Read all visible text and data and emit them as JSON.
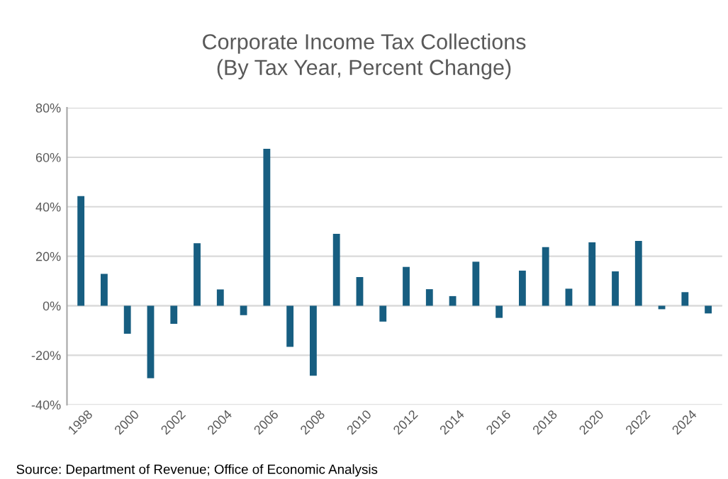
{
  "chart_data": {
    "type": "bar",
    "title": "Corporate Income Tax Collections\n(By Tax Year, Percent Change)",
    "categories": [
      "1998",
      null,
      "2000",
      null,
      "2002",
      null,
      "2004",
      null,
      "2006",
      null,
      "2008",
      null,
      "2010",
      null,
      "2012",
      null,
      "2014",
      null,
      "2016",
      null,
      "2018",
      null,
      "2020",
      null,
      "2022",
      null,
      "2024",
      null
    ],
    "values": [
      44.3,
      12.9,
      -11.3,
      -29.3,
      -7.3,
      25.3,
      6.6,
      -3.8,
      63.4,
      -16.6,
      -28.3,
      29.1,
      11.6,
      -6.4,
      15.7,
      6.7,
      3.9,
      17.8,
      -4.9,
      14.2,
      23.7,
      6.9,
      25.6,
      13.9,
      26.2,
      -1.4,
      5.5,
      -3.1
    ],
    "color": "#175e81",
    "ylim": [
      -40,
      80
    ],
    "yticks": [
      {
        "value": -40,
        "label": "-40%"
      },
      {
        "value": -20,
        "label": "-20%"
      },
      {
        "value": 0,
        "label": "0%"
      },
      {
        "value": 20,
        "label": "20%"
      },
      {
        "value": 40,
        "label": "40%"
      },
      {
        "value": 60,
        "label": "60%"
      },
      {
        "value": 80,
        "label": "80%"
      }
    ],
    "grid": "y",
    "annotations": [
      "Source: Department of Revenue; Office of Economic Analysis"
    ]
  }
}
